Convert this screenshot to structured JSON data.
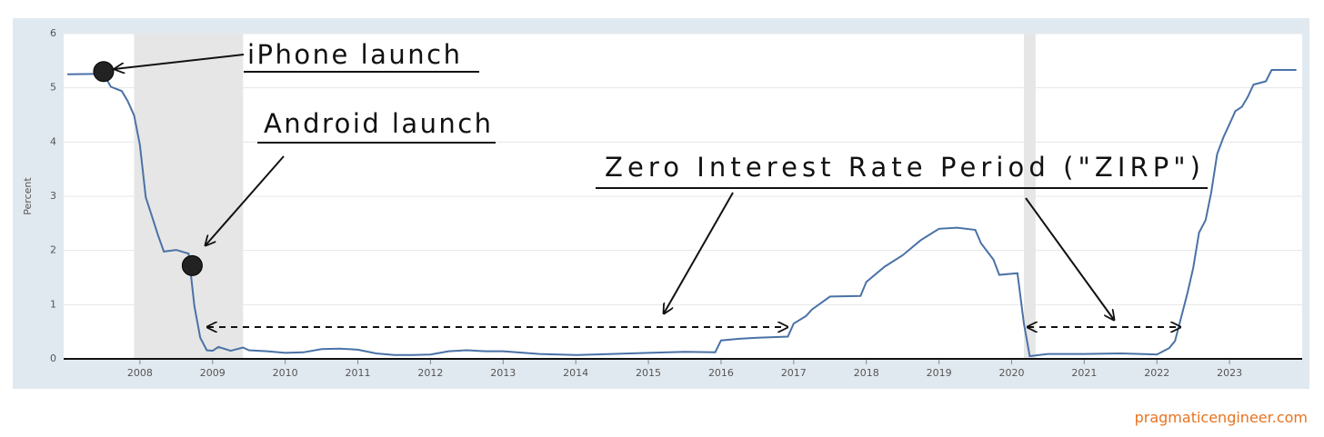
{
  "chart_data": {
    "type": "line",
    "y_label": "Percent",
    "color": "#4a72a6",
    "recession_color": "#e6e6e6",
    "grid": true,
    "xlim": [
      2006.95,
      2024.0
    ],
    "xticks": [
      2008,
      2009,
      2010,
      2011,
      2012,
      2013,
      2014,
      2015,
      2016,
      2017,
      2018,
      2019,
      2020,
      2021,
      2022,
      2023
    ],
    "ylim": [
      0,
      6
    ],
    "yticks": [
      0,
      1,
      2,
      3,
      4,
      5,
      6
    ],
    "shaded_regions": [
      [
        2007.92,
        2009.42
      ],
      [
        2020.17,
        2020.33
      ]
    ],
    "x": [
      2007.0,
      2007.5,
      2007.6,
      2007.75,
      2007.83,
      2007.92,
      2008.0,
      2008.08,
      2008.17,
      2008.25,
      2008.33,
      2008.5,
      2008.67,
      2008.75,
      2008.83,
      2008.92,
      2009.0,
      2009.08,
      2009.25,
      2009.42,
      2009.5,
      2009.75,
      2010.0,
      2010.25,
      2010.5,
      2010.75,
      2011.0,
      2011.25,
      2011.5,
      2011.75,
      2012.0,
      2012.25,
      2012.5,
      2012.75,
      2013.0,
      2013.5,
      2014.0,
      2014.5,
      2015.0,
      2015.5,
      2015.92,
      2016.0,
      2016.25,
      2016.5,
      2016.92,
      2017.0,
      2017.17,
      2017.25,
      2017.5,
      2017.92,
      2018.0,
      2018.25,
      2018.5,
      2018.75,
      2019.0,
      2019.25,
      2019.5,
      2019.58,
      2019.75,
      2019.83,
      2020.08,
      2020.17,
      2020.25,
      2020.5,
      2021.0,
      2021.5,
      2022.0,
      2022.17,
      2022.25,
      2022.42,
      2022.5,
      2022.58,
      2022.67,
      2022.75,
      2022.83,
      2022.92,
      2023.0,
      2023.08,
      2023.17,
      2023.25,
      2023.33,
      2023.5,
      2023.58,
      2023.92
    ],
    "values": [
      5.25,
      5.26,
      5.02,
      4.94,
      4.76,
      4.49,
      3.94,
      2.98,
      2.61,
      2.28,
      1.98,
      2.01,
      1.94,
      0.97,
      0.39,
      0.16,
      0.15,
      0.22,
      0.15,
      0.21,
      0.16,
      0.14,
      0.11,
      0.12,
      0.18,
      0.19,
      0.17,
      0.1,
      0.07,
      0.07,
      0.08,
      0.14,
      0.16,
      0.14,
      0.14,
      0.09,
      0.07,
      0.09,
      0.11,
      0.13,
      0.12,
      0.34,
      0.37,
      0.39,
      0.41,
      0.65,
      0.79,
      0.91,
      1.15,
      1.16,
      1.42,
      1.7,
      1.91,
      2.19,
      2.4,
      2.42,
      2.38,
      2.13,
      1.83,
      1.55,
      1.58,
      0.65,
      0.05,
      0.09,
      0.09,
      0.1,
      0.08,
      0.2,
      0.33,
      1.21,
      1.68,
      2.33,
      2.56,
      3.08,
      3.78,
      4.1,
      4.33,
      4.57,
      4.65,
      4.83,
      5.06,
      5.12,
      5.33,
      5.33
    ],
    "annotations": [
      {
        "text": "iPhone launch",
        "x": 2007.5,
        "y": 5.3
      },
      {
        "text": "Android launch",
        "x": 2008.72,
        "y": 1.72
      },
      {
        "text": "Zero Interest Rate Period (\"ZIRP\")"
      }
    ],
    "credit": "pragmaticengineer.com"
  }
}
